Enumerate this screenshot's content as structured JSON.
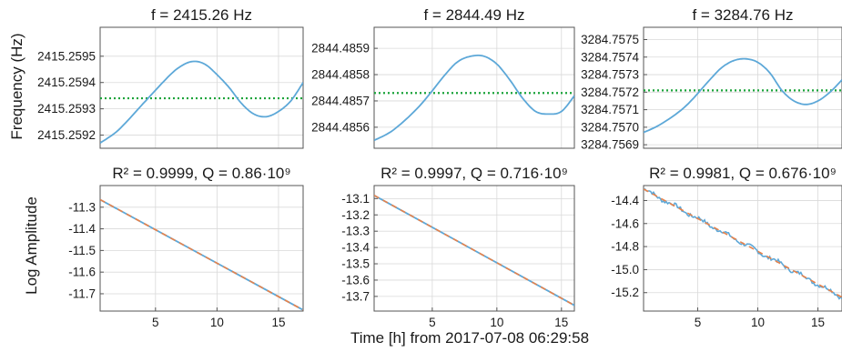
{
  "figure": {
    "ylabel_top": "Frequency (Hz)",
    "ylabel_bottom": "Log Amplitude",
    "xlabel": "Time [h] from 2017-07-08 06:29:58"
  },
  "colors": {
    "data_line": "#5da8d8",
    "dotted_mean": "#1aa33a",
    "fit_line": "#e8824a",
    "axis": "#555555",
    "grid": "#d9d9d9"
  },
  "chart_data": [
    {
      "type": "line",
      "title": "f = 2415.26 Hz",
      "xlim": [
        0.5,
        17
      ],
      "ylim": [
        2415.25915,
        2415.25961
      ],
      "ytick_labels": [
        "2415.2595",
        "2415.2594",
        "2415.2593",
        "2415.2592"
      ],
      "ytick_values": [
        2415.2595,
        2415.2594,
        2415.2593,
        2415.2592
      ],
      "grid": true,
      "series": [
        {
          "x": [
            0.5,
            2,
            4,
            6,
            7,
            8,
            9,
            10,
            11,
            12,
            13,
            14,
            15,
            16,
            17
          ],
          "y": [
            2415.25917,
            2415.25922,
            2415.25932,
            2415.25942,
            2415.25946,
            2415.25948,
            2415.25947,
            2415.25943,
            2415.25938,
            2415.25932,
            2415.25928,
            2415.25927,
            2415.25929,
            2415.25933,
            2415.2594
          ]
        }
      ],
      "mean_line": 2415.25934
    },
    {
      "type": "line",
      "title": "f = 2844.49 Hz",
      "xlim": [
        0.5,
        16
      ],
      "ylim": [
        2844.48552,
        2844.48598
      ],
      "ytick_labels": [
        "2844.4859",
        "2844.4858",
        "2844.4857",
        "2844.4856"
      ],
      "ytick_values": [
        2844.4859,
        2844.4858,
        2844.4857,
        2844.4856
      ],
      "grid": true,
      "series": [
        {
          "x": [
            0.5,
            2,
            4,
            6,
            7,
            8,
            9,
            10,
            11,
            12,
            13,
            14,
            15,
            16
          ],
          "y": [
            2844.48555,
            2844.48559,
            2844.48568,
            2844.4858,
            2844.48585,
            2844.48587,
            2844.48587,
            2844.48584,
            2844.48578,
            2844.48571,
            2844.48566,
            2844.48565,
            2844.48566,
            2844.48572
          ]
        }
      ],
      "mean_line": 2844.48573
    },
    {
      "type": "line",
      "title": "f = 3284.76 Hz",
      "xlim": [
        0.5,
        17
      ],
      "ylim": [
        3284.75688,
        3284.75757
      ],
      "ytick_labels": [
        "3284.7575",
        "3284.7574",
        "3284.7573",
        "3284.7572",
        "3284.7571",
        "3284.7570",
        "3284.7569"
      ],
      "ytick_values": [
        3284.7575,
        3284.7574,
        3284.7573,
        3284.7572,
        3284.7571,
        3284.757,
        3284.7569
      ],
      "grid": true,
      "series": [
        {
          "x": [
            0.5,
            2,
            4,
            6,
            7,
            8,
            9,
            10,
            11,
            12,
            13,
            14,
            15,
            16,
            17
          ],
          "y": [
            3284.75697,
            3284.75702,
            3284.75712,
            3284.75727,
            3284.75734,
            3284.75738,
            3284.75739,
            3284.75737,
            3284.75731,
            3284.75721,
            3284.75715,
            3284.75713,
            3284.75715,
            3284.7572,
            3284.75727
          ]
        }
      ],
      "mean_line": 3284.75721
    },
    {
      "type": "line",
      "title": "R² = 0.9999, Q = 0.86·10⁹",
      "xlim": [
        0.5,
        17
      ],
      "ylim": [
        -11.78,
        -11.2
      ],
      "xtick_labels": [
        "5",
        "10",
        "15"
      ],
      "xtick_values": [
        5,
        10,
        15
      ],
      "ytick_labels": [
        "-11.3",
        "-11.4",
        "-11.5",
        "-11.6",
        "-11.7"
      ],
      "ytick_values": [
        -11.3,
        -11.4,
        -11.5,
        -11.6,
        -11.7
      ],
      "grid": true,
      "series": [
        {
          "x": [
            0.5,
            17
          ],
          "y": [
            -11.265,
            -11.775
          ]
        }
      ],
      "fit": {
        "x": [
          0.5,
          17
        ],
        "y": [
          -11.265,
          -11.775
        ]
      }
    },
    {
      "type": "line",
      "title": "R² = 0.9997, Q = 0.716·10⁹",
      "xlim": [
        0.5,
        16
      ],
      "ylim": [
        -13.79,
        -13.02
      ],
      "xtick_labels": [
        "5",
        "10",
        "15"
      ],
      "xtick_values": [
        5,
        10,
        15
      ],
      "ytick_labels": [
        "-13.1",
        "-13.2",
        "-13.3",
        "-13.4",
        "-13.5",
        "-13.6",
        "-13.7"
      ],
      "ytick_values": [
        -13.1,
        -13.2,
        -13.3,
        -13.4,
        -13.5,
        -13.6,
        -13.7
      ],
      "grid": true,
      "series": [
        {
          "x": [
            0.5,
            16
          ],
          "y": [
            -13.08,
            -13.755
          ]
        }
      ],
      "fit": {
        "x": [
          0.5,
          16
        ],
        "y": [
          -13.08,
          -13.755
        ]
      }
    },
    {
      "type": "line",
      "title": "R² = 0.9981, Q = 0.676·10⁹",
      "xlim": [
        0.5,
        17
      ],
      "ylim": [
        -15.36,
        -14.27
      ],
      "xtick_labels": [
        "5",
        "10",
        "15"
      ],
      "xtick_values": [
        5,
        10,
        15
      ],
      "ytick_labels": [
        "-14.4",
        "-14.6",
        "-14.8",
        "-15.0",
        "-15.2"
      ],
      "ytick_values": [
        -14.4,
        -14.6,
        -14.8,
        -15.0,
        -15.2
      ],
      "grid": true,
      "series": [
        {
          "x": [
            0.5,
            17
          ],
          "y": [
            -14.3,
            -15.24
          ],
          "noisy": true
        }
      ],
      "fit": {
        "x": [
          0.5,
          17
        ],
        "y": [
          -14.3,
          -15.24
        ]
      }
    }
  ]
}
